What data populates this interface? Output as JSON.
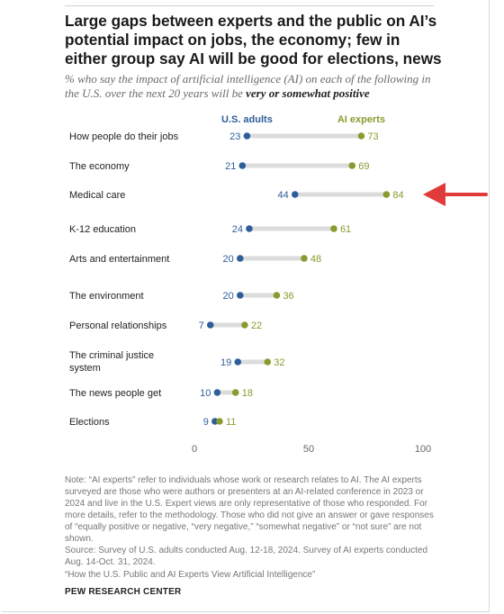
{
  "title": "Large gaps between experts and the public on AI’s potential impact on jobs, the economy; few in either group say AI will be good for elections, news",
  "subtitle_prefix": "% who say the impact of artificial intelligence (AI) on each of the following in the U.S. over the next 20 years will be ",
  "subtitle_emphasis": "very or somewhat positive",
  "colors": {
    "us_adults": "#2e5e9a",
    "ai_experts": "#8a9a2e",
    "connector": "#dcdcdc",
    "arrow": "#e03a3a"
  },
  "chart_data": {
    "type": "dot",
    "series": [
      {
        "name": "U.S. adults",
        "values": [
          23,
          21,
          44,
          24,
          20,
          20,
          7,
          19,
          10,
          9
        ]
      },
      {
        "name": "AI experts",
        "values": [
          73,
          69,
          84,
          61,
          48,
          36,
          22,
          32,
          18,
          11
        ]
      }
    ],
    "categories": [
      "How people do their jobs",
      "The economy",
      "Medical care",
      "K-12 education",
      "Arts and entertainment",
      "The environment",
      "Personal relationships",
      "The criminal justice system",
      "The news people get",
      "Elections"
    ],
    "xlim": [
      0,
      100
    ],
    "xticks": [
      "0",
      "50",
      "100"
    ],
    "grid": false,
    "highlight": "Medical care"
  },
  "note": "Note: “AI experts” refer to individuals whose work or research relates to AI. The AI experts surveyed are those who were authors or presenters at an AI-related conference in 2023 or 2024 and live in the U.S. Expert views are only representative of those who responded. For more details, refer to the methodology. Those who did not give an answer or gave responses of “equally positive or negative, “very negative,” “somewhat negative” or “not sure” are not shown.",
  "source": "Source: Survey of U.S. adults conducted Aug. 12-18, 2024. Survey of AI experts conducted Aug. 14-Oct. 31, 2024.",
  "report": "“How the U.S. Public and AI Experts View Artificial Intelligence”",
  "brand": "PEW RESEARCH CENTER"
}
